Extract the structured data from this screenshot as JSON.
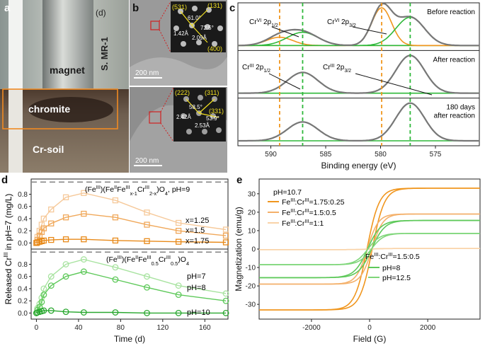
{
  "panel_a": {
    "letter": "a",
    "sublabel": "(d)",
    "strain": "S. MR-1",
    "labels": {
      "magnet": "magnet",
      "chromite": "chromite",
      "soil": "Cr-soil"
    }
  },
  "panel_b": {
    "letter": "b",
    "top": {
      "scale": "200 nm",
      "miller": [
        "(531)",
        "(131)",
        "(400)"
      ],
      "angles": [
        "61.0°",
        "72.5°"
      ],
      "dist": [
        "1.42Å",
        "2.09Å"
      ]
    },
    "bottom": {
      "scale": "200 nm",
      "miller": [
        "(222)",
        "(311)",
        "(331)"
      ],
      "angles": [
        "58.5°",
        "53.9°"
      ],
      "dist": [
        "2.42Å",
        "2.53Å"
      ]
    }
  },
  "chart_data": [
    {
      "id": "c",
      "type": "line",
      "letter": "c",
      "xlabel": "Binding energy (eV)",
      "xlim": [
        593,
        571
      ],
      "xticks": [
        590,
        585,
        580,
        575
      ],
      "vlines": [
        {
          "x": 589.2,
          "color": "#f0961e"
        },
        {
          "x": 587.1,
          "color": "#2fb83a"
        },
        {
          "x": 579.9,
          "color": "#f0961e"
        },
        {
          "x": 577.3,
          "color": "#2fb83a"
        }
      ],
      "subpanels": [
        {
          "label": "Before reaction",
          "peaks": [
            [
              589.2,
              0.22,
              1.2,
              "#f0961e"
            ],
            [
              587.1,
              0.35,
              1.4,
              "#2fb83a"
            ],
            [
              579.9,
              1.0,
              0.9,
              "#f0961e"
            ],
            [
              577.3,
              0.75,
              1.3,
              "#2fb83a"
            ]
          ],
          "annotations": [
            "CrVI 2p1/2",
            "CrVI 2p3/2"
          ]
        },
        {
          "label": "After reaction",
          "peaks": [
            [
              587.1,
              0.55,
              1.4,
              "#2fb83a"
            ],
            [
              577.3,
              1.0,
              1.3,
              "#2fb83a"
            ]
          ],
          "annotations": [
            "CrIII 2p1/2",
            "CrIII 2p3/2"
          ]
        },
        {
          "label": "180 days",
          "label2": "after reaction",
          "peaks": [
            [
              587.1,
              0.5,
              1.4,
              "#2fb83a"
            ],
            [
              577.3,
              1.0,
              1.3,
              "#2fb83a"
            ]
          ],
          "annotations": []
        }
      ],
      "cr_vi_sup": "VI",
      "cr_iii_sup": "III"
    },
    {
      "id": "d",
      "type": "line",
      "letter": "d",
      "xlabel": "Time (d)",
      "ylabel": "Released CrIII in pH=7 (mg/L)",
      "xlim": [
        -5,
        182
      ],
      "xticks": [
        0,
        40,
        80,
        120,
        160
      ],
      "top": {
        "ylim": [
          -0.1,
          1.05
        ],
        "yticks": [
          0.0,
          0.2,
          0.4,
          0.6,
          0.8
        ],
        "title": "(FeIII)(FeIIFeIIIx-1CrIII2-x)O4, pH=9",
        "x": [
          0,
          1,
          3,
          5,
          7,
          14,
          28,
          45,
          75,
          105,
          135,
          180
        ],
        "series": [
          {
            "name": "x=1.25",
            "color": "#f6c99a",
            "values": [
              0.0,
              0.1,
              0.2,
              0.3,
              0.4,
              0.55,
              0.75,
              0.82,
              0.7,
              0.5,
              0.33,
              0.22
            ]
          },
          {
            "name": "x=1.5",
            "color": "#f0a85a",
            "values": [
              0.0,
              0.05,
              0.12,
              0.18,
              0.24,
              0.32,
              0.42,
              0.48,
              0.42,
              0.3,
              0.2,
              0.12
            ]
          },
          {
            "name": "x=1.75",
            "color": "#e88a1a",
            "values": [
              0.0,
              0.01,
              0.02,
              0.03,
              0.04,
              0.05,
              0.06,
              0.06,
              0.04,
              0.03,
              0.02,
              0.01
            ]
          }
        ]
      },
      "bottom": {
        "ylim": [
          -0.1,
          1.05
        ],
        "yticks": [
          0.0,
          0.2,
          0.4,
          0.6,
          0.8
        ],
        "title": "(FeIII)(FeIIFeIII0.5CrIII0.5)O4",
        "x": [
          0,
          1,
          3,
          5,
          7,
          14,
          28,
          45,
          75,
          105,
          135,
          180
        ],
        "series": [
          {
            "name": "pH=7",
            "color": "#a8e3a0",
            "values": [
              0.0,
              0.08,
              0.15,
              0.25,
              0.4,
              0.6,
              0.8,
              0.88,
              0.75,
              0.6,
              0.45,
              0.32
            ]
          },
          {
            "name": "pH=8",
            "color": "#5ec95a",
            "values": [
              0.0,
              0.05,
              0.1,
              0.18,
              0.3,
              0.45,
              0.6,
              0.68,
              0.55,
              0.42,
              0.3,
              0.2
            ]
          },
          {
            "name": "pH=10",
            "color": "#2aa830",
            "values": [
              0.0,
              0.01,
              0.02,
              0.03,
              0.04,
              0.04,
              0.02,
              0.01,
              0.01,
              0.0,
              0.0,
              0.0
            ]
          }
        ]
      }
    },
    {
      "id": "e",
      "type": "line",
      "letter": "e",
      "xlabel": "Field (G)",
      "ylabel": "Magnetization (emu/g)",
      "xlim": [
        -3800,
        3800
      ],
      "ylim": [
        -38,
        38
      ],
      "xticks": [
        -2000,
        0,
        2000
      ],
      "yticks": [
        -30,
        -20,
        -10,
        0,
        10,
        20,
        30
      ],
      "legend1_title": "pH=10.7",
      "legend2_title": "FeIII:CrIII=1.5:0.5",
      "series": [
        {
          "name": "FeIII:CrIII=1.75:0.25",
          "color": "#f0961e",
          "ms": 33,
          "hc": 90,
          "k": 420
        },
        {
          "name": "FeIII:CrIII=1.5:0.5",
          "color": "#f4b06a",
          "ms": 19,
          "hc": 80,
          "k": 380
        },
        {
          "name": "FeIII:CrIII=1:1",
          "color": "#f9d3a8",
          "ms": 0.3,
          "hc": 0,
          "k": 400
        },
        {
          "name": "pH=8",
          "color": "#5ec95a",
          "ms": 15.5,
          "hc": 70,
          "k": 450
        },
        {
          "name": "pH=12.5",
          "color": "#7fd67a",
          "ms": 8.5,
          "hc": 60,
          "k": 420
        }
      ]
    }
  ]
}
